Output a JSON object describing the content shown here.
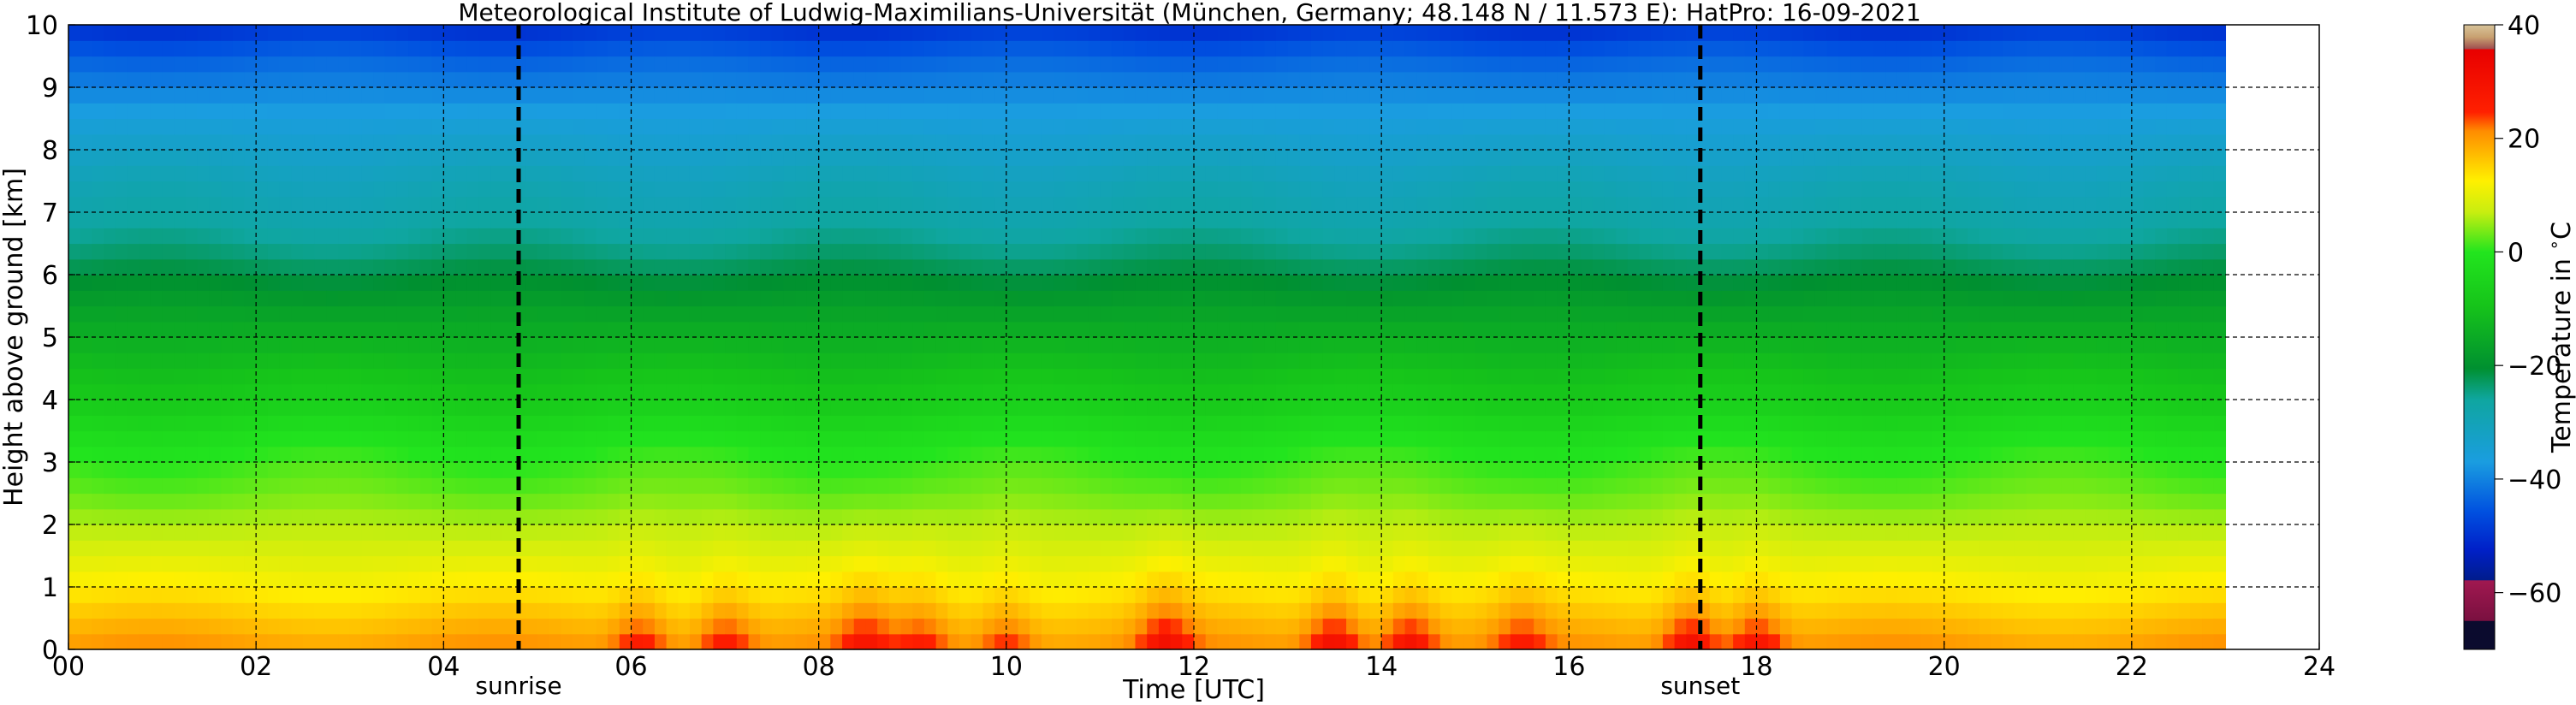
{
  "chart_data": {
    "type": "heatmap",
    "title": "Meteorological Institute of Ludwig-Maximilians-Universität (München, Germany; 48.148 N / 11.573 E):     HatPro: 16-09-2021",
    "xlabel": "Time [UTC]",
    "ylabel": "Height above ground [km]",
    "xlim": [
      0,
      24
    ],
    "ylim": [
      0,
      10
    ],
    "xtick_labels": [
      "00",
      "02",
      "04",
      "06",
      "08",
      "10",
      "12",
      "14",
      "16",
      "18",
      "20",
      "22",
      "24"
    ],
    "ytick_labels": [
      "0",
      "1",
      "2",
      "3",
      "4",
      "5",
      "6",
      "7",
      "8",
      "9",
      "10"
    ],
    "grid": true,
    "data_time_range": [
      0,
      23
    ],
    "vertical_profile": {
      "height_km": [
        0,
        0.5,
        1,
        1.5,
        2,
        2.5,
        3,
        3.5,
        4,
        4.5,
        5,
        5.5,
        6,
        6.5,
        7,
        7.5,
        8,
        8.5,
        9,
        9.5,
        10
      ],
      "temperature_c": [
        20,
        16,
        12,
        9,
        6,
        3,
        1,
        -3,
        -8,
        -11,
        -14,
        -17,
        -21,
        -25,
        -28,
        -30,
        -33,
        -36,
        -40,
        -44,
        -50
      ]
    },
    "warm_surface_events": [
      {
        "time": 6.1,
        "peak_temperature_c": 30
      },
      {
        "time": 7.0,
        "peak_temperature_c": 30
      },
      {
        "time": 8.5,
        "peak_temperature_c": 30
      },
      {
        "time": 9.1,
        "peak_temperature_c": 28
      },
      {
        "time": 10.0,
        "peak_temperature_c": 28
      },
      {
        "time": 11.7,
        "peak_temperature_c": 32
      },
      {
        "time": 13.5,
        "peak_temperature_c": 34
      },
      {
        "time": 14.3,
        "peak_temperature_c": 33
      },
      {
        "time": 15.5,
        "peak_temperature_c": 28
      },
      {
        "time": 17.3,
        "peak_temperature_c": 34
      },
      {
        "time": 18.0,
        "peak_temperature_c": 32
      }
    ],
    "events": [
      {
        "label": "sunrise",
        "time": 4.8
      },
      {
        "label": "sunset",
        "time": 17.4
      }
    ],
    "colorbar": {
      "label": "Temperature in $^\\circ$C",
      "range": [
        -70,
        40
      ],
      "tick_labels": [
        "40",
        "20",
        "0",
        "−20",
        "−40",
        "−60"
      ],
      "tick_values": [
        40,
        20,
        0,
        -20,
        -40,
        -60
      ]
    }
  }
}
